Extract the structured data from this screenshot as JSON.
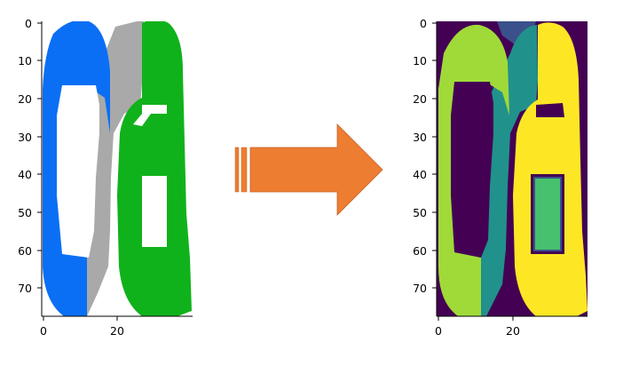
{
  "left_panel": {
    "y_ticks": [
      "0",
      "10",
      "20",
      "30",
      "40",
      "50",
      "60",
      "70"
    ],
    "x_ticks": [
      "0",
      "20"
    ],
    "colors": {
      "blue": "#0a6ff5",
      "gray": "#a9a9a9",
      "green": "#10b21b",
      "background": "#ffffff"
    }
  },
  "arrow": {
    "color": "#ed7d31",
    "direction": "right"
  },
  "right_panel": {
    "y_ticks": [
      "0",
      "10",
      "20",
      "30",
      "40",
      "50",
      "60",
      "70"
    ],
    "x_ticks": [
      "0",
      "20"
    ],
    "colors": {
      "background": "#440154",
      "dark_blue": "#3b518b",
      "teal": "#21918c",
      "green": "#47c16e",
      "lime": "#a0da39",
      "yellow": "#fde725"
    }
  }
}
